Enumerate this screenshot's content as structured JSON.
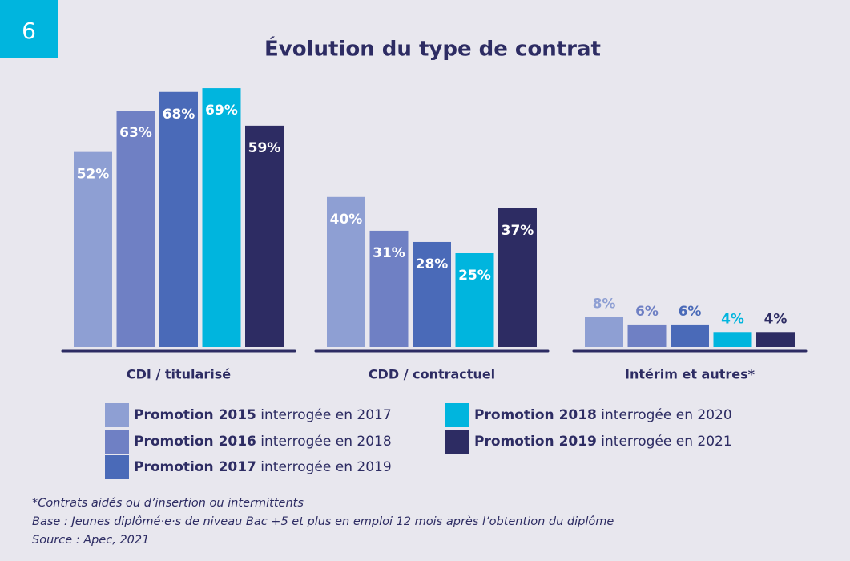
{
  "badge": "6",
  "chart_data": {
    "type": "bar",
    "title": "Évolution du type de contrat",
    "categories": [
      "CDI / titularisé",
      "CDD / contractuel",
      "Intérim et autres*"
    ],
    "ylim": [
      0,
      75
    ],
    "series": [
      {
        "name": "Promotion 2015",
        "note": "interrogée en 2017",
        "color": "#8e9fd3",
        "values": [
          52,
          40,
          8
        ],
        "value_labels": [
          "52%",
          "40%",
          "8%"
        ]
      },
      {
        "name": "Promotion 2016",
        "note": "interrogée en 2018",
        "color": "#6f80c4",
        "values": [
          63,
          31,
          6
        ],
        "value_labels": [
          "63%",
          "31%",
          "6%"
        ]
      },
      {
        "name": "Promotion 2017",
        "note": "interrogée en 2019",
        "color": "#4a6ab8",
        "values": [
          68,
          28,
          6
        ],
        "value_labels": [
          "68%",
          "28%",
          "6%"
        ]
      },
      {
        "name": "Promotion 2018",
        "note": "interrogée en 2020",
        "color": "#00b5de",
        "values": [
          69,
          25,
          4
        ],
        "value_labels": [
          "69%",
          "25%",
          "4%"
        ]
      },
      {
        "name": "Promotion 2019",
        "note": "interrogée en 2021",
        "color": "#2d2c63",
        "values": [
          59,
          37,
          4
        ],
        "value_labels": [
          "59%",
          "37%",
          "4%"
        ]
      }
    ],
    "footnotes": [
      "*Contrats aidés ou d’insertion ou intermittents",
      "Base : Jeunes diplômé·e·s de niveau Bac +5 et plus en emploi 12 mois après l’obtention du diplôme",
      "Source : Apec, 2021"
    ]
  }
}
